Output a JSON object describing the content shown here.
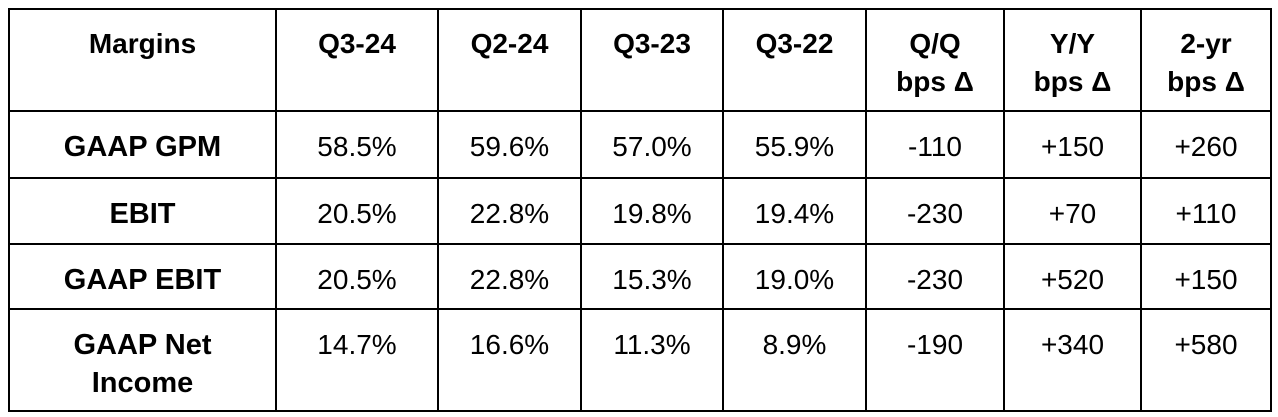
{
  "table": {
    "header": [
      "Margins",
      "Q3-24",
      "Q2-24",
      "Q3-23",
      "Q3-22",
      "Q/Q\nbps Δ",
      "Y/Y\nbps Δ",
      "2-yr\nbps Δ"
    ],
    "rows": [
      [
        "GAAP GPM",
        "58.5%",
        "59.6%",
        "57.0%",
        "55.9%",
        "-110",
        "+150",
        "+260"
      ],
      [
        "EBIT",
        "20.5%",
        "22.8%",
        "19.8%",
        "19.4%",
        "-230",
        "+70",
        "+110"
      ],
      [
        "GAAP EBIT",
        "20.5%",
        "22.8%",
        "15.3%",
        "19.0%",
        "-230",
        "+520",
        "+150"
      ],
      [
        "GAAP Net\nIncome",
        "14.7%",
        "16.6%",
        "11.3%",
        "8.9%",
        "-190",
        "+340",
        "+580"
      ]
    ]
  }
}
